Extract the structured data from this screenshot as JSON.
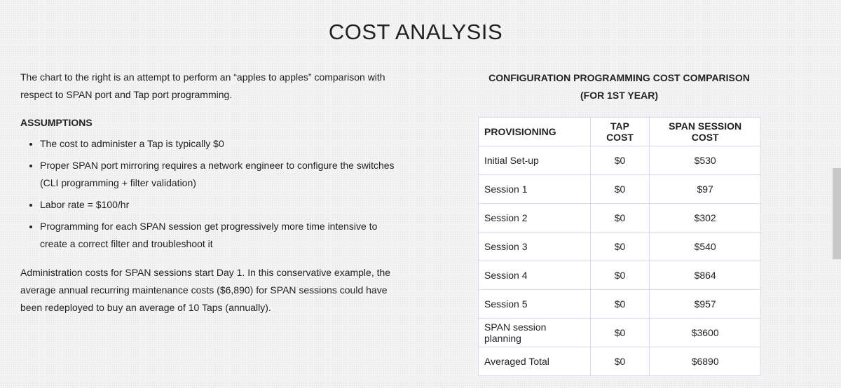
{
  "page": {
    "title": "COST ANALYSIS",
    "intro": "The chart to the right is an attempt to perform an “apples to apples” comparison with respect to SPAN port and Tap port programming.",
    "assumptions_heading": "ASSUMPTIONS",
    "assumptions": [
      "The cost to administer a Tap is typically $0",
      "Proper SPAN port mirroring requires a network engineer to configure the switches (CLI programming + filter validation)",
      "Labor rate = $100/hr",
      "Programming for each SPAN session get progressively more time intensive to create a correct filter and troubleshoot it"
    ],
    "closing": "Administration costs for SPAN sessions start Day 1. In this conservative example, the average annual recurring maintenance costs ($6,890) for SPAN sessions could have been redeployed to buy an average of 10 Taps (annually).",
    "table_title": [
      "CONFIGURATION PROGRAMMING COST COMPARISON",
      "(FOR 1ST YEAR)"
    ],
    "table": {
      "header": [
        "PROVISIONING",
        "TAP COST",
        "SPAN SESSION COST"
      ],
      "rows": [
        [
          "Initial Set-up",
          "$0",
          "$530"
        ],
        [
          "Session 1",
          "$0",
          "$97"
        ],
        [
          "Session 2",
          "$0",
          "$302"
        ],
        [
          "Session 3",
          "$0",
          "$540"
        ],
        [
          "Session 4",
          "$0",
          "$864"
        ],
        [
          "Session 5",
          "$0",
          "$957"
        ],
        [
          "SPAN session planning",
          "$0",
          "$3600"
        ],
        [
          "Averaged Total",
          "$0",
          "$6890"
        ]
      ]
    }
  }
}
